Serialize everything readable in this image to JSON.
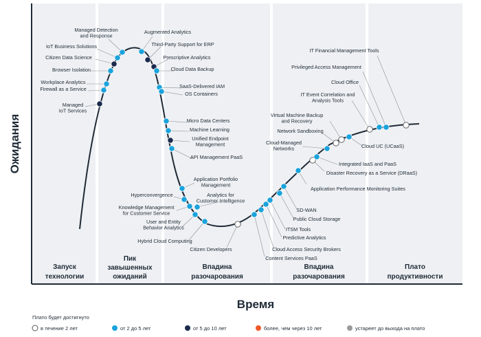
{
  "axes": {
    "y_title": "Ожидания",
    "x_title": "Время"
  },
  "phases": [
    {
      "line1": "Запуск",
      "line2": "технологии"
    },
    {
      "line1": "Пик",
      "line2": "завышенных",
      "line3": "ожиданий"
    },
    {
      "line1": "Впадина",
      "line2": "разочарования"
    },
    {
      "line1": "Впадина",
      "line2": "разочарования"
    },
    {
      "line1": "Плато",
      "line2": "продуктивности"
    }
  ],
  "legend": {
    "title": "Плато будет достигнуто",
    "items": [
      {
        "label": "в течение 2 лет",
        "color": "#ffffff"
      },
      {
        "label": "от 2 до 5 лет",
        "color": "#1aa3dc"
      },
      {
        "label": "от 5 до 10 лет",
        "color": "#1b2a4e"
      },
      {
        "label": "более, чем через 10 лет",
        "color": "#f0592a"
      },
      {
        "label": "устареет до выхода на плато",
        "color": "#9a9a9a"
      }
    ]
  },
  "colors": {
    "curve": "#1f2a36",
    "two_years": "#ffffff",
    "two_to_five": "#1aa3dc",
    "five_to_ten": "#1b2a4e",
    "more_than_ten": "#f0592a",
    "obsolete": "#9a9a9a"
  },
  "technologies": [
    {
      "name": "Managed Detection and Response",
      "class": "two_to_five"
    },
    {
      "name": "IoT Business Solutions",
      "class": "two_to_five"
    },
    {
      "name": "Citizen Data Science",
      "class": "five_to_ten"
    },
    {
      "name": "Browser Isolation",
      "class": "two_to_five"
    },
    {
      "name": "Workplace Analytics",
      "class": "two_to_five"
    },
    {
      "name": "Firewall as a Service",
      "class": "two_to_five"
    },
    {
      "name": "Managed IoT Services",
      "class": "five_to_ten"
    },
    {
      "name": "Augmented Analytics",
      "class": "two_to_five"
    },
    {
      "name": "Third-Party Support for ERP",
      "class": "five_to_ten"
    },
    {
      "name": "Prescriptive Analytics",
      "class": "five_to_ten"
    },
    {
      "name": "Cloud Data Backup",
      "class": "two_to_five"
    },
    {
      "name": "SaaS-Delivered IAM",
      "class": "two_to_five"
    },
    {
      "name": "OS Containers",
      "class": "two_to_five"
    },
    {
      "name": "Micro Data Centers",
      "class": "two_to_five"
    },
    {
      "name": "Machine Learning",
      "class": "two_to_five"
    },
    {
      "name": "Unified Endpoint Management",
      "class": "five_to_ten"
    },
    {
      "name": "API Management PaaS",
      "class": "two_to_five"
    },
    {
      "name": "Application Portfolio Management",
      "class": "two_to_five"
    },
    {
      "name": "Hyperconvergence",
      "class": "two_to_five"
    },
    {
      "name": "Analytics for Customer Intelligence",
      "class": "two_to_five"
    },
    {
      "name": "Knowledge Management for Customer Service",
      "class": "two_to_five"
    },
    {
      "name": "User and Entity Behavior Analytics",
      "class": "two_to_five"
    },
    {
      "name": "Hybrid Cloud Computing",
      "class": "two_to_five"
    },
    {
      "name": "Citizen Developers",
      "class": "two_years"
    },
    {
      "name": "Content Services PaaS",
      "class": "two_to_five"
    },
    {
      "name": "Cloud Access Security Brokers",
      "class": "two_to_five"
    },
    {
      "name": "Predictive Analytics",
      "class": "two_to_five"
    },
    {
      "name": "ITSM Tools",
      "class": "two_to_five"
    },
    {
      "name": "Public Cloud Storage",
      "class": "two_to_five"
    },
    {
      "name": "SD-WAN",
      "class": "two_to_five"
    },
    {
      "name": "Application Performance Monitoring Suites",
      "class": "two_to_five"
    },
    {
      "name": "Disaster Recovery as a Service (DRaaS)",
      "class": "two_years"
    },
    {
      "name": "Integrated IaaS and PaaS",
      "class": "two_to_five"
    },
    {
      "name": "Cloud-Managed Networks",
      "class": "two_to_five"
    },
    {
      "name": "Network Sandboxing",
      "class": "two_years"
    },
    {
      "name": "Virtual Machine Backup and Recovery",
      "class": "two_years"
    },
    {
      "name": "Cloud UC (UCaaS)",
      "class": "two_to_five"
    },
    {
      "name": "IT Event Correlation and Analysis Tools",
      "class": "two_years"
    },
    {
      "name": "Cloud Office",
      "class": "two_to_five"
    },
    {
      "name": "Privileged Access Management",
      "class": "two_to_five"
    },
    {
      "name": "IT Financial Management Tools",
      "class": "two_years"
    }
  ]
}
